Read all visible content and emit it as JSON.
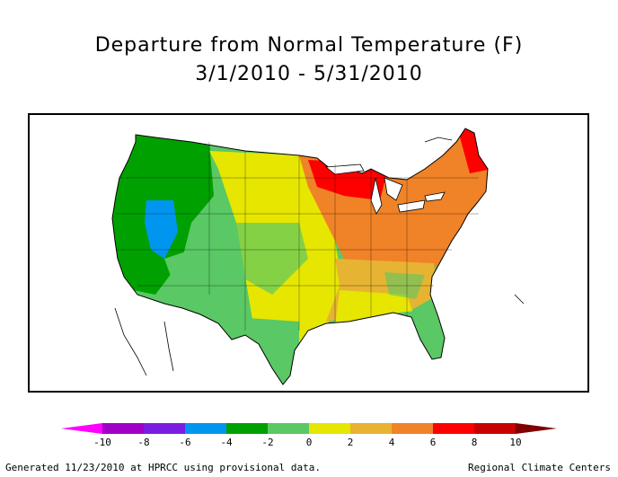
{
  "title": {
    "line1": "Departure from Normal Temperature (F)",
    "line2": "3/1/2010 - 5/31/2010"
  },
  "legend": {
    "ticks": [
      "-10",
      "-8",
      "-6",
      "-4",
      "-2",
      "0",
      "2",
      "4",
      "6",
      "8",
      "10"
    ],
    "colors": [
      "#a000c8",
      "#7a1de0",
      "#0096f0",
      "#00a000",
      "#5ac864",
      "#e6e600",
      "#e6b432",
      "#f08228",
      "#ff0000",
      "#c80000"
    ],
    "low_arrow_color": "#ff00ff",
    "high_arrow_color": "#800000"
  },
  "footer": {
    "left": "Generated 11/23/2010 at HPRCC using provisional data.",
    "right": "Regional Climate Centers"
  }
}
